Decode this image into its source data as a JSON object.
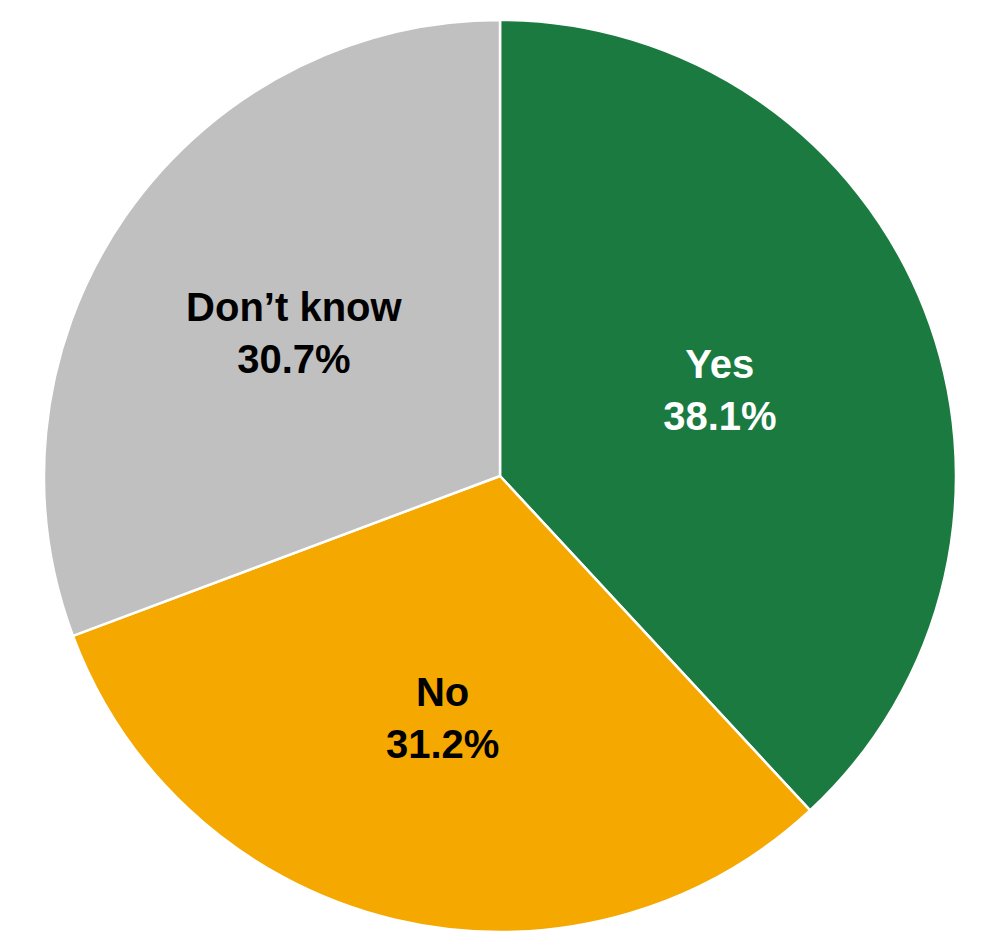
{
  "chart_data": {
    "type": "pie",
    "categories": [
      "Yes",
      "No",
      "Don’t know"
    ],
    "values": [
      38.1,
      31.2,
      30.7
    ],
    "value_labels": [
      "38.1%",
      "31.2%",
      "30.7%"
    ],
    "colors": [
      "#1a7a40",
      "#f5a800",
      "#c0c0c0"
    ],
    "data_labels": true
  }
}
